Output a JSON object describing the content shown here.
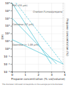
{
  "chart_data": {
    "type": "line",
    "log": "y",
    "grid": true,
    "xlabel": "Propane concentration (% vol/volume)",
    "ylabel": "EMI",
    "y2label": "Propane concentration (%)",
    "footnote": "The diameter indicated corresponds to the average particle diameter",
    "xlim": [
      0,
      4
    ],
    "xticks": [
      0,
      1,
      2,
      3,
      4
    ],
    "ylim": [
      0.001,
      1000000
    ],
    "yticks": [
      {
        "value": 0.001,
        "label": "10⁻³"
      },
      {
        "value": 0.01,
        "label": "10⁻²"
      },
      {
        "value": 0.1,
        "label": "10⁻¹"
      },
      {
        "value": 1,
        "label": "10⁰"
      },
      {
        "value": 10,
        "label": "10¹"
      },
      {
        "value": 100,
        "label": "10²"
      },
      {
        "value": 1000,
        "label": "10³"
      },
      {
        "value": 10000,
        "label": "10⁴"
      },
      {
        "value": 100000,
        "label": "10⁵"
      },
      {
        "value": 1000000,
        "label": "10⁶"
      }
    ],
    "series": [
      {
        "x": [
          0,
          3.0
        ],
        "values": [
          1000000,
          0.01
        ],
        "color": "#5bc8d8",
        "line_style": "solid"
      },
      {
        "x": [
          0,
          3.4
        ],
        "values": [
          10000,
          0.01
        ],
        "color": "#5bc8d8",
        "line_style": "solid"
      },
      {
        "x": [
          0,
          3.9
        ],
        "values": [
          15.848931924611136,
          0.01
        ],
        "color": "#5bc8d8",
        "line_style": "solid"
      },
      {
        "x": [
          0.3,
          3.9
        ],
        "values": [
          1000000,
          0.01
        ],
        "color": "#5bc8d8",
        "line_style": "dashed"
      }
    ],
    "annotations": [
      {
        "text": "PVC (35 µm)",
        "x": 0.05,
        "y": 398107.1705534973
      },
      {
        "text": "Cellulose (37 µm)",
        "x": 0.05,
        "y": 1258.9254117941675
      },
      {
        "text": "Dextrose (< 1.09 µm)",
        "x": 0.05,
        "y": 2.8183829312644537
      },
      {
        "text": "Charbon-Fumee/propane",
        "x": 1.6,
        "y": 63095.7344480193
      }
    ],
    "vlines": [
      3.9
    ]
  }
}
